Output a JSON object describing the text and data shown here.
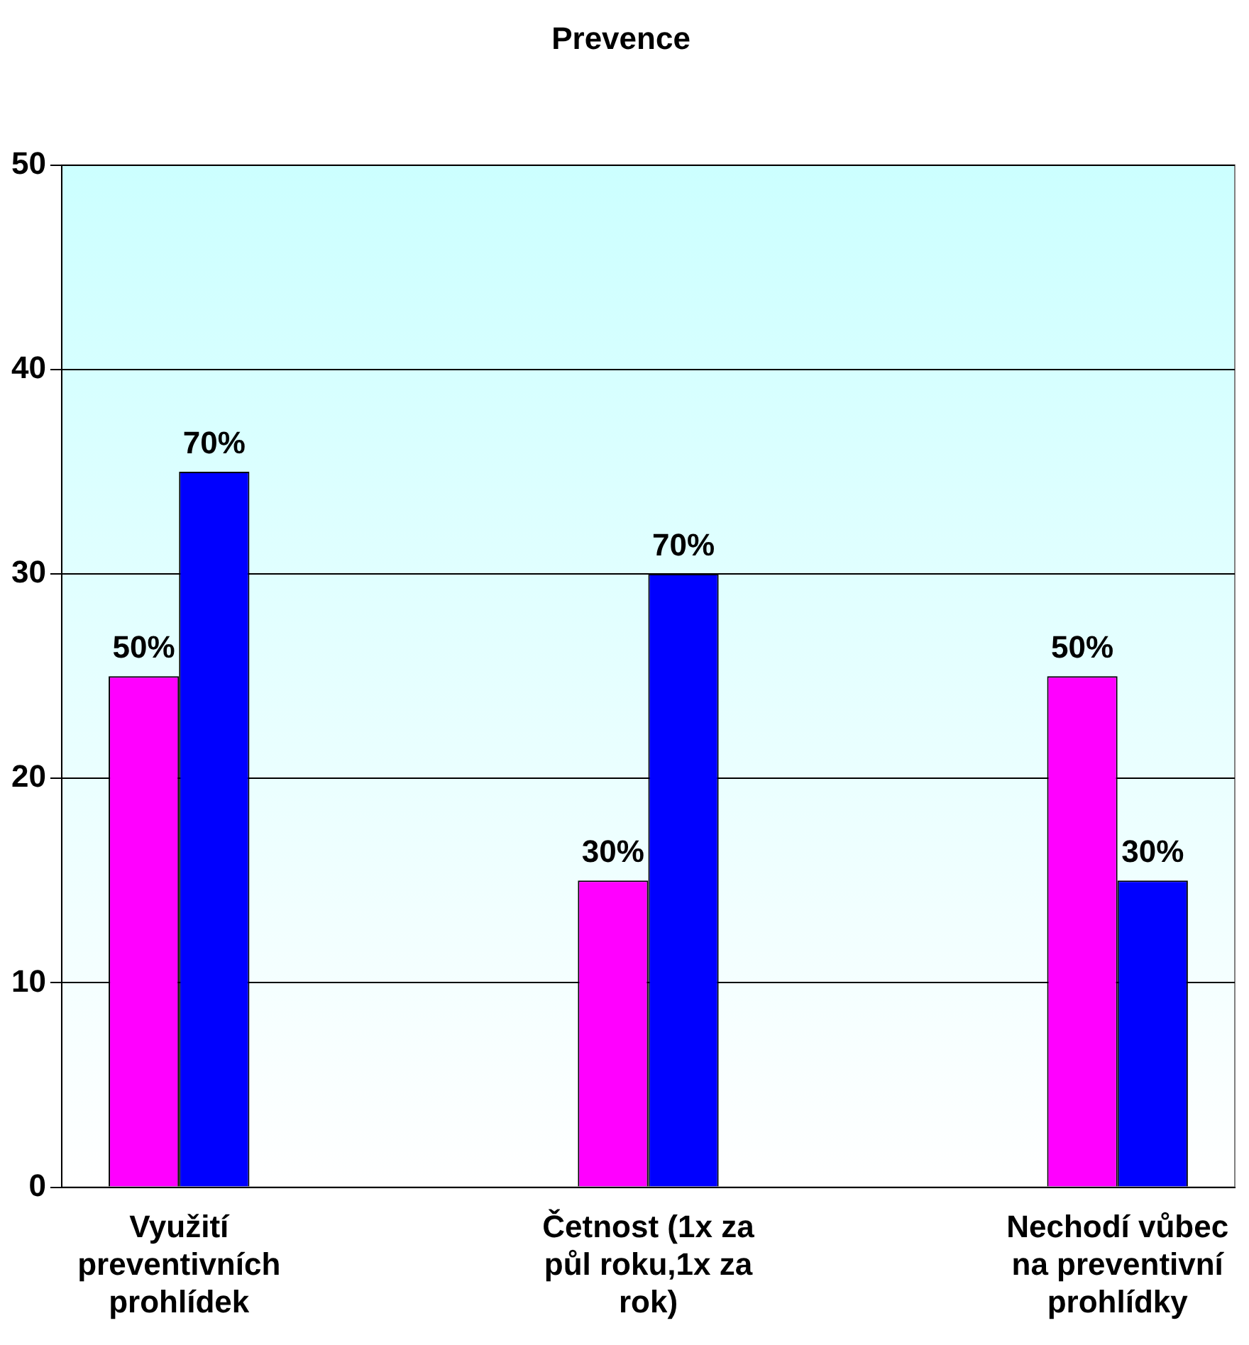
{
  "chart_data": {
    "type": "bar",
    "title": "Prevence",
    "categories": [
      "Využití preventivních prohlídek",
      null,
      "Četnost (1x za půl roku,1x za rok)",
      null,
      "Nechodí vůbec na preventivní prohlídky"
    ],
    "series": [
      {
        "color": "#ff00ff",
        "values": [
          25,
          null,
          15,
          null,
          25
        ]
      },
      {
        "color": "#0000ff",
        "values": [
          35,
          null,
          30,
          null,
          15
        ]
      }
    ],
    "annotations": [
      {
        "text": "50%",
        "x": "Využití preventivních prohlídek",
        "y": 25
      },
      {
        "text": "70%",
        "x": "Využití preventivních prohlídek",
        "y": 35
      },
      {
        "text": "30%",
        "x": "Četnost (1x za půl roku,1x za rok)",
        "y": 15
      },
      {
        "text": "70%",
        "x": "Četnost (1x za půl roku,1x za rok)",
        "y": 30
      },
      {
        "text": "50%",
        "x": "Nechodí vůbec na preventivní prohlídky",
        "y": 25
      },
      {
        "text": "30%",
        "x": "Nechodí vůbec na preventivní prohlídky",
        "y": 15
      }
    ],
    "ylim": [
      0,
      50
    ],
    "yticks": [
      0,
      10,
      20,
      30,
      40,
      50
    ],
    "grid": "y",
    "legend": false
  }
}
